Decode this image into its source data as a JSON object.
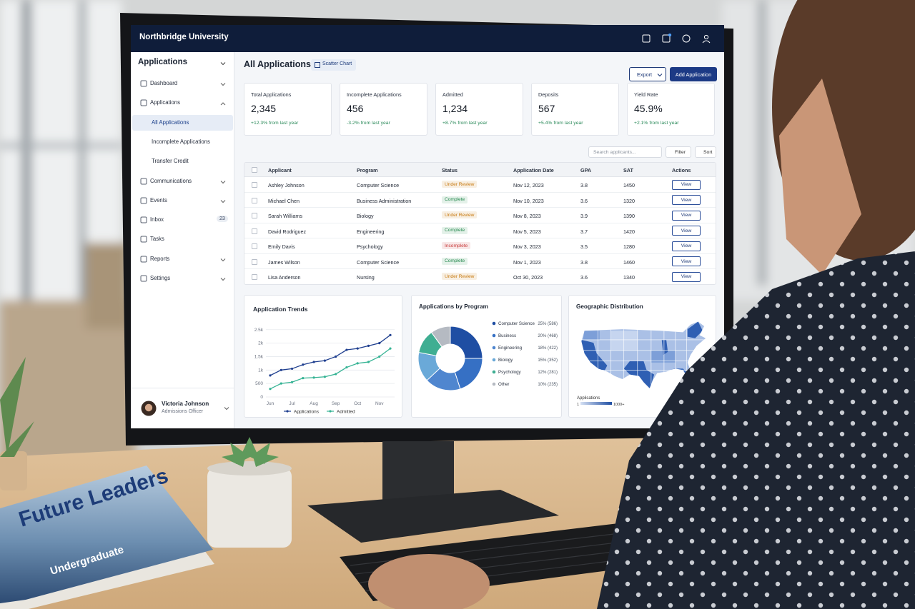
{
  "header": {
    "title": "Northbridge University"
  },
  "sidebar": {
    "title": "Applications",
    "items": [
      {
        "label": "Dashboard",
        "expandable": true
      },
      {
        "label": "Applications",
        "expandable": true,
        "children": [
          {
            "label": "All Applications"
          },
          {
            "label": "Incomplete Applications"
          },
          {
            "label": "Transfer Credit"
          }
        ]
      },
      {
        "label": "Communications",
        "expandable": true
      },
      {
        "label": "Events",
        "expandable": true
      },
      {
        "label": "Inbox",
        "badge": 23
      },
      {
        "label": "Tasks"
      },
      {
        "label": "Reports",
        "expandable": true
      },
      {
        "label": "Settings",
        "expandable": true
      }
    ],
    "user": {
      "name": "Victoria Johnson",
      "role": "Admissions Officer"
    }
  },
  "main": {
    "title": "All Applications",
    "view_button": "Scatter Chart",
    "export_button": "Export",
    "add_button": "Add Application",
    "kpis": [
      {
        "label": "Total Applications",
        "value": "2,345",
        "change": "+12.3% from last year"
      },
      {
        "label": "Incomplete Applications",
        "value": 456,
        "change": "-3.2% from last year"
      },
      {
        "label": "Admitted",
        "value": "1,234",
        "change": "+8.7% from last year"
      },
      {
        "label": "Deposits",
        "value": 567,
        "change": "+5.4% from last year"
      },
      {
        "label": "Yield Rate",
        "value": "45.9%",
        "change": "+2.1% from last year"
      }
    ],
    "search_placeholder": "Search applicants...",
    "filter_button": "Filter",
    "sort_button": "Sort",
    "table": {
      "columns": [
        "Applicant",
        "Program",
        "Status",
        "Application Date",
        "GPA",
        "SAT",
        "Actions"
      ],
      "rows": [
        [
          "Ashley Johnson",
          "Computer Science",
          "Under Review",
          "Nov 12, 2023",
          3.8,
          1450,
          "View"
        ],
        [
          "Michael Chen",
          "Business Administration",
          "Complete",
          "Nov 10, 2023",
          3.6,
          1320,
          "View"
        ],
        [
          "Sarah Williams",
          "Biology",
          "Under Review",
          "Nov 8, 2023",
          3.9,
          1390,
          "View"
        ],
        [
          "David Rodriguez",
          "Engineering",
          "Complete",
          "Nov 5, 2023",
          3.7,
          1420,
          "View"
        ],
        [
          "Emily Davis",
          "Psychology",
          "Incomplete",
          "Nov 3, 2023",
          3.5,
          1280,
          "View"
        ],
        [
          "James Wilson",
          "Computer Science",
          "Complete",
          "Nov 1, 2023",
          3.8,
          1460,
          "View"
        ],
        [
          "Lisa Anderson",
          "Nursing",
          "Under Review",
          "Oct 30, 2023",
          3.6,
          1340,
          "View"
        ]
      ],
      "status_colors": [
        "#c7790f",
        "#23884d",
        "#c7790f",
        "#23884d",
        "#c83a3a",
        "#23884d",
        "#c7790f"
      ]
    }
  },
  "chart_data": [
    {
      "type": "line",
      "title": "Application Trends",
      "categories": [
        "Jun",
        null,
        "Jul",
        null,
        "Aug",
        null,
        "Sep",
        null,
        "Oct",
        null,
        "Nov",
        null
      ],
      "series": [
        {
          "name": "Applications",
          "color": "#1f3f8f",
          "values": [
            800,
            1000,
            1050,
            1200,
            1300,
            1350,
            1500,
            1750,
            1800,
            1900,
            2000,
            2300
          ]
        },
        {
          "name": "Admitted",
          "color": "#35b394",
          "values": [
            300,
            500,
            550,
            700,
            720,
            750,
            850,
            1100,
            1250,
            1300,
            1500,
            1800
          ]
        }
      ],
      "ylim": [
        0,
        2600
      ],
      "yticks": [
        0,
        500,
        {
          "value": 1000,
          "label": "1k"
        },
        {
          "value": 1500,
          "label": "1.5k"
        },
        {
          "value": 2000,
          "label": "2k"
        },
        {
          "value": 2500,
          "label": "2.5k"
        }
      ],
      "grid": true
    },
    {
      "type": "pie",
      "title": "Applications by Program",
      "categories": [
        "Computer Science",
        "Business",
        "Engineering",
        "Biology",
        "Psychology",
        "Other"
      ],
      "values": [
        25,
        20,
        18,
        15,
        12,
        10
      ],
      "value_labels": [
        "25% (586)",
        "20% (468)",
        "18% (422)",
        "15% (352)",
        "12% (281)",
        "10% (235)"
      ],
      "colors": [
        "#1f4ea3",
        "#3670c4",
        "#4f86cf",
        "#6aa9d8",
        "#3fae92",
        "#b5bac2"
      ]
    }
  ],
  "map": {
    "title": "Geographic Distribution",
    "legend_title": "Applications",
    "legend_min": 1,
    "legend_max": "1000+"
  },
  "booklet": {
    "title": "Future Leaders",
    "subtitle": "Undergraduate"
  }
}
